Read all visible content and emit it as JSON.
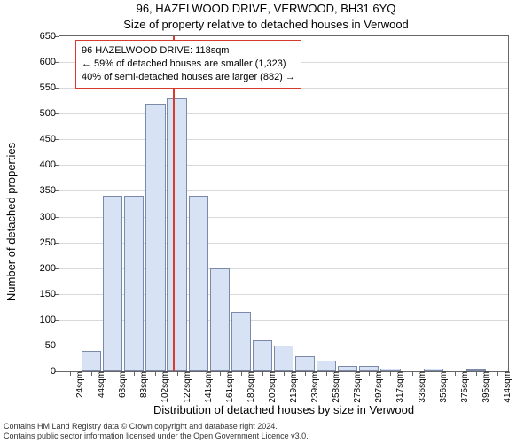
{
  "chart": {
    "type": "histogram",
    "title": "96, HAZELWOOD DRIVE, VERWOOD, BH31 6YQ",
    "subtitle": "Size of property relative to detached houses in Verwood",
    "y_label": "Number of detached properties",
    "x_label": "Distribution of detached houses by size in Verwood",
    "plot_background": "#ffffff",
    "bar_fill": "#d7e2f4",
    "bar_border": "#7a8aa8",
    "grid_color": "#d9d9d9",
    "axis_color": "#666666",
    "marker_color": "#d63b2e",
    "info_border": "#d63b2e",
    "title_fontsize": 13,
    "label_fontsize": 13,
    "tick_fontsize": 11,
    "ylim": [
      0,
      650
    ],
    "ytick_step": 50,
    "yticks": [
      0,
      50,
      100,
      150,
      200,
      250,
      300,
      350,
      400,
      450,
      500,
      550,
      600,
      650
    ],
    "x_categories": [
      "24sqm",
      "44sqm",
      "63sqm",
      "83sqm",
      "102sqm",
      "122sqm",
      "141sqm",
      "161sqm",
      "180sqm",
      "200sqm",
      "219sqm",
      "239sqm",
      "258sqm",
      "278sqm",
      "297sqm",
      "317sqm",
      "336sqm",
      "356sqm",
      "375sqm",
      "395sqm",
      "414sqm"
    ],
    "values": [
      0,
      40,
      340,
      340,
      520,
      530,
      340,
      200,
      115,
      60,
      50,
      30,
      20,
      10,
      10,
      5,
      0,
      5,
      0,
      3,
      0
    ],
    "bar_width_ratio": 0.92,
    "marker_position_index": 4.85,
    "info_box": {
      "line1": "96 HAZELWOOD DRIVE: 118sqm",
      "line2": "← 59% of detached houses are smaller (1,323)",
      "line3": "40% of semi-detached houses are larger (882) →"
    },
    "footer_line1": "Contains HM Land Registry data © Crown copyright and database right 2024.",
    "footer_line2": "Contains public sector information licensed under the Open Government Licence v3.0."
  }
}
